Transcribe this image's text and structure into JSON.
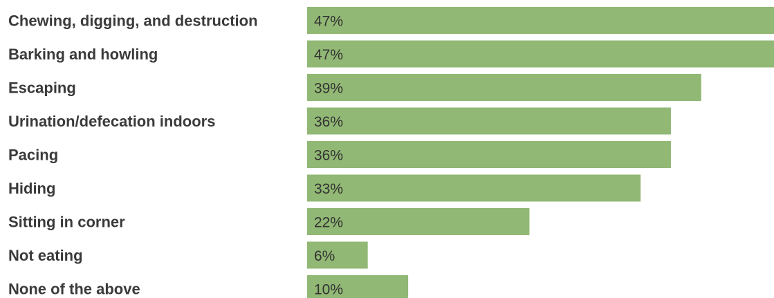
{
  "chart_data": {
    "type": "bar",
    "orientation": "horizontal",
    "categories": [
      "Chewing, digging, and destruction",
      "Barking and howling",
      "Escaping",
      "Urination/defecation indoors",
      "Pacing",
      "Hiding",
      "Sitting in corner",
      "Not eating",
      "None of the above"
    ],
    "values": [
      47,
      47,
      39,
      36,
      36,
      33,
      22,
      6,
      10
    ],
    "value_labels": [
      "47%",
      "47%",
      "39%",
      "36%",
      "36%",
      "33%",
      "22%",
      "6%",
      "10%"
    ],
    "unit": "%",
    "title": "",
    "xlabel": "",
    "ylabel": "",
    "xlim": [
      0,
      46.2
    ],
    "grid": false,
    "legend": "none",
    "colors": {
      "bar": "#91b874",
      "category_text": "#3a3a3a",
      "value_text": "#333333"
    }
  }
}
